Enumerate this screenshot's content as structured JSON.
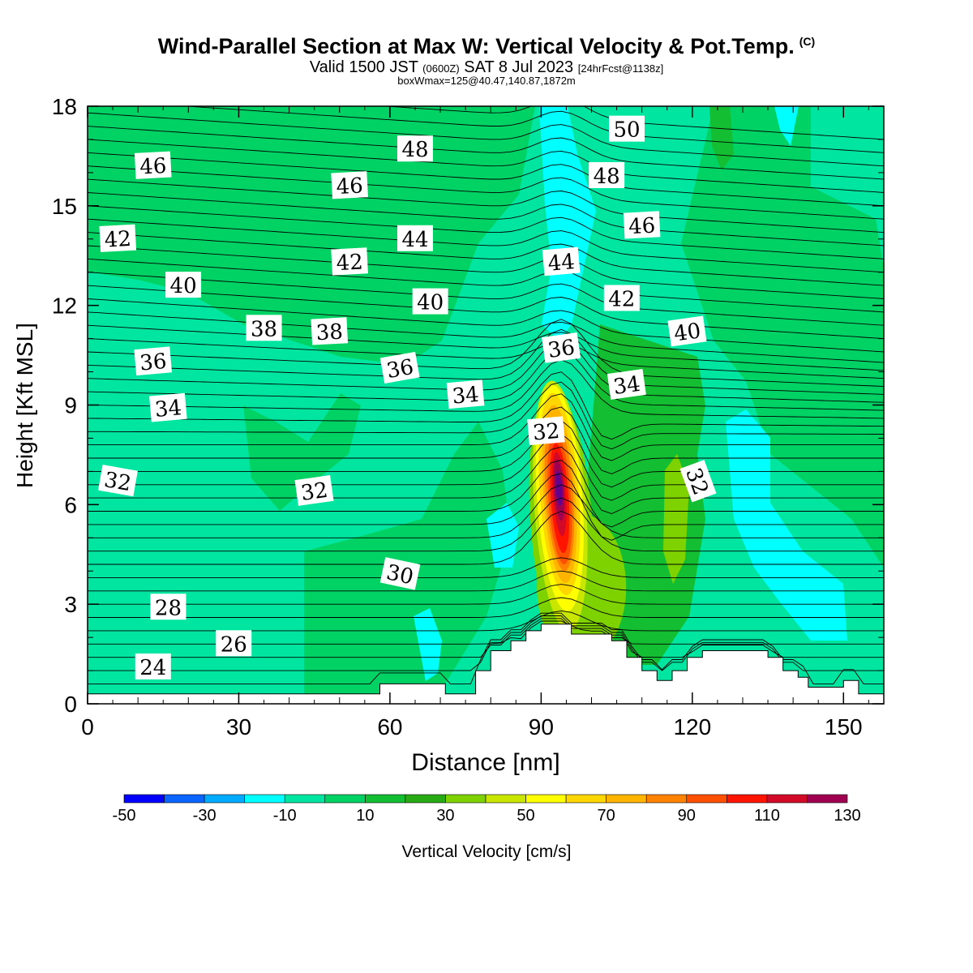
{
  "header": {
    "title": "Wind-Parallel Section at Max W: Vertical Velocity & Pot.Temp.",
    "title_mark": "(C)",
    "subtitle_main": "Valid 1500 JST",
    "subtitle_z": "(0600Z)",
    "subtitle_date": "SAT 8 Jul 2023",
    "subtitle_fcst": "[24hrFcst@1138z]",
    "subline": "boxWmax=125@40.47,140.87,1872m"
  },
  "chart_data": {
    "type": "heatmap",
    "xlabel": "Distance [nm]",
    "ylabel": "Height [Kft MSL]",
    "xlim": [
      0,
      158
    ],
    "ylim": [
      0,
      18
    ],
    "x_ticks": [
      "0",
      "30",
      "60",
      "90",
      "120",
      "150"
    ],
    "x_tick_values": [
      0,
      30,
      60,
      90,
      120,
      150
    ],
    "y_ticks": [
      "0",
      "3",
      "6",
      "9",
      "12",
      "15",
      "18"
    ],
    "y_tick_values": [
      0,
      3,
      6,
      9,
      12,
      15,
      18
    ],
    "colorbar": {
      "label": "Vertical Velocity [cm/s]",
      "tick_labels": [
        "-50",
        "-30",
        "-10",
        "10",
        "30",
        "50",
        "70",
        "90",
        "110",
        "130"
      ],
      "tick_values": [
        -50,
        -30,
        -10,
        10,
        30,
        50,
        70,
        90,
        110,
        130
      ],
      "levels": [
        -50,
        -40,
        -30,
        -20,
        -10,
        0,
        10,
        20,
        30,
        40,
        50,
        60,
        70,
        80,
        90,
        100,
        110,
        120,
        130
      ],
      "colors": [
        "#0000ff",
        "#0a64ff",
        "#00aaff",
        "#00ffff",
        "#00e6a0",
        "#00d264",
        "#14be32",
        "#28aa14",
        "#7dd200",
        "#c8e600",
        "#ffff00",
        "#ffd700",
        "#ffb400",
        "#ff8200",
        "#ff5000",
        "#ff1400",
        "#d20a28",
        "#a00050",
        "#64008c"
      ]
    },
    "theta_contour_labels": [
      {
        "text": "50",
        "x": 107,
        "y": 17.3,
        "angle": 0
      },
      {
        "text": "48",
        "x": 65,
        "y": 16.7,
        "angle": 0
      },
      {
        "text": "48",
        "x": 103,
        "y": 15.9,
        "angle": 0
      },
      {
        "text": "46",
        "x": 13,
        "y": 16.2,
        "angle": -3
      },
      {
        "text": "46",
        "x": 52,
        "y": 15.6,
        "angle": -3
      },
      {
        "text": "46",
        "x": 110,
        "y": 14.4,
        "angle": -3
      },
      {
        "text": "44",
        "x": 65,
        "y": 14.0,
        "angle": 0
      },
      {
        "text": "44",
        "x": 94,
        "y": 13.3,
        "angle": -5
      },
      {
        "text": "42",
        "x": 6,
        "y": 14.0,
        "angle": -3
      },
      {
        "text": "42",
        "x": 52,
        "y": 13.3,
        "angle": -3
      },
      {
        "text": "42",
        "x": 106,
        "y": 12.2,
        "angle": 0
      },
      {
        "text": "40",
        "x": 19,
        "y": 12.6,
        "angle": 0
      },
      {
        "text": "40",
        "x": 68,
        "y": 12.1,
        "angle": 0
      },
      {
        "text": "40",
        "x": 119,
        "y": 11.2,
        "angle": -8
      },
      {
        "text": "38",
        "x": 35,
        "y": 11.3,
        "angle": 0
      },
      {
        "text": "38",
        "x": 48,
        "y": 11.2,
        "angle": -3
      },
      {
        "text": "36",
        "x": 13,
        "y": 10.3,
        "angle": -5
      },
      {
        "text": "36",
        "x": 62,
        "y": 10.1,
        "angle": -10
      },
      {
        "text": "36",
        "x": 94,
        "y": 10.7,
        "angle": -8
      },
      {
        "text": "34",
        "x": 16,
        "y": 8.9,
        "angle": -5
      },
      {
        "text": "34",
        "x": 75,
        "y": 9.3,
        "angle": -5
      },
      {
        "text": "34",
        "x": 107,
        "y": 9.6,
        "angle": -8
      },
      {
        "text": "32",
        "x": 6,
        "y": 6.7,
        "angle": 10
      },
      {
        "text": "32",
        "x": 45,
        "y": 6.4,
        "angle": -8
      },
      {
        "text": "32",
        "x": 91,
        "y": 8.2,
        "angle": -5
      },
      {
        "text": "32",
        "x": 121,
        "y": 6.7,
        "angle": 70
      },
      {
        "text": "30",
        "x": 62,
        "y": 3.9,
        "angle": 12
      },
      {
        "text": "28",
        "x": 16,
        "y": 2.9,
        "angle": 0
      },
      {
        "text": "26",
        "x": 29,
        "y": 1.8,
        "angle": 0
      },
      {
        "text": "24",
        "x": 13,
        "y": 1.1,
        "angle": 0
      }
    ],
    "terrain": [
      [
        0,
        0.3
      ],
      [
        58,
        0.3
      ],
      [
        58,
        0.6
      ],
      [
        71,
        0.6
      ],
      [
        71,
        0.3
      ],
      [
        77,
        0.3
      ],
      [
        77,
        1.0
      ],
      [
        80,
        1.0
      ],
      [
        80,
        1.6
      ],
      [
        84,
        1.6
      ],
      [
        84,
        1.9
      ],
      [
        87,
        1.9
      ],
      [
        87,
        2.2
      ],
      [
        90,
        2.2
      ],
      [
        90,
        2.4
      ],
      [
        96,
        2.4
      ],
      [
        96,
        2.1
      ],
      [
        104,
        2.1
      ],
      [
        104,
        1.9
      ],
      [
        107,
        1.9
      ],
      [
        107,
        1.4
      ],
      [
        110,
        1.4
      ],
      [
        110,
        1.0
      ],
      [
        113,
        1.0
      ],
      [
        113,
        0.7
      ],
      [
        116,
        0.7
      ],
      [
        116,
        1.0
      ],
      [
        119,
        1.0
      ],
      [
        119,
        1.4
      ],
      [
        122,
        1.4
      ],
      [
        122,
        1.6
      ],
      [
        135,
        1.6
      ],
      [
        135,
        1.4
      ],
      [
        138,
        1.4
      ],
      [
        138,
        1.0
      ],
      [
        141,
        1.0
      ],
      [
        141,
        0.8
      ],
      [
        143,
        0.8
      ],
      [
        143,
        0.5
      ],
      [
        150,
        0.5
      ],
      [
        150,
        0.7
      ],
      [
        153,
        0.7
      ],
      [
        153,
        0.3
      ],
      [
        156,
        0.3
      ],
      [
        156,
        0.3
      ],
      [
        158,
        0.3
      ]
    ],
    "updraft_core_max": 125,
    "updraft_core_location": {
      "x": 94,
      "y": 6.2
    }
  }
}
